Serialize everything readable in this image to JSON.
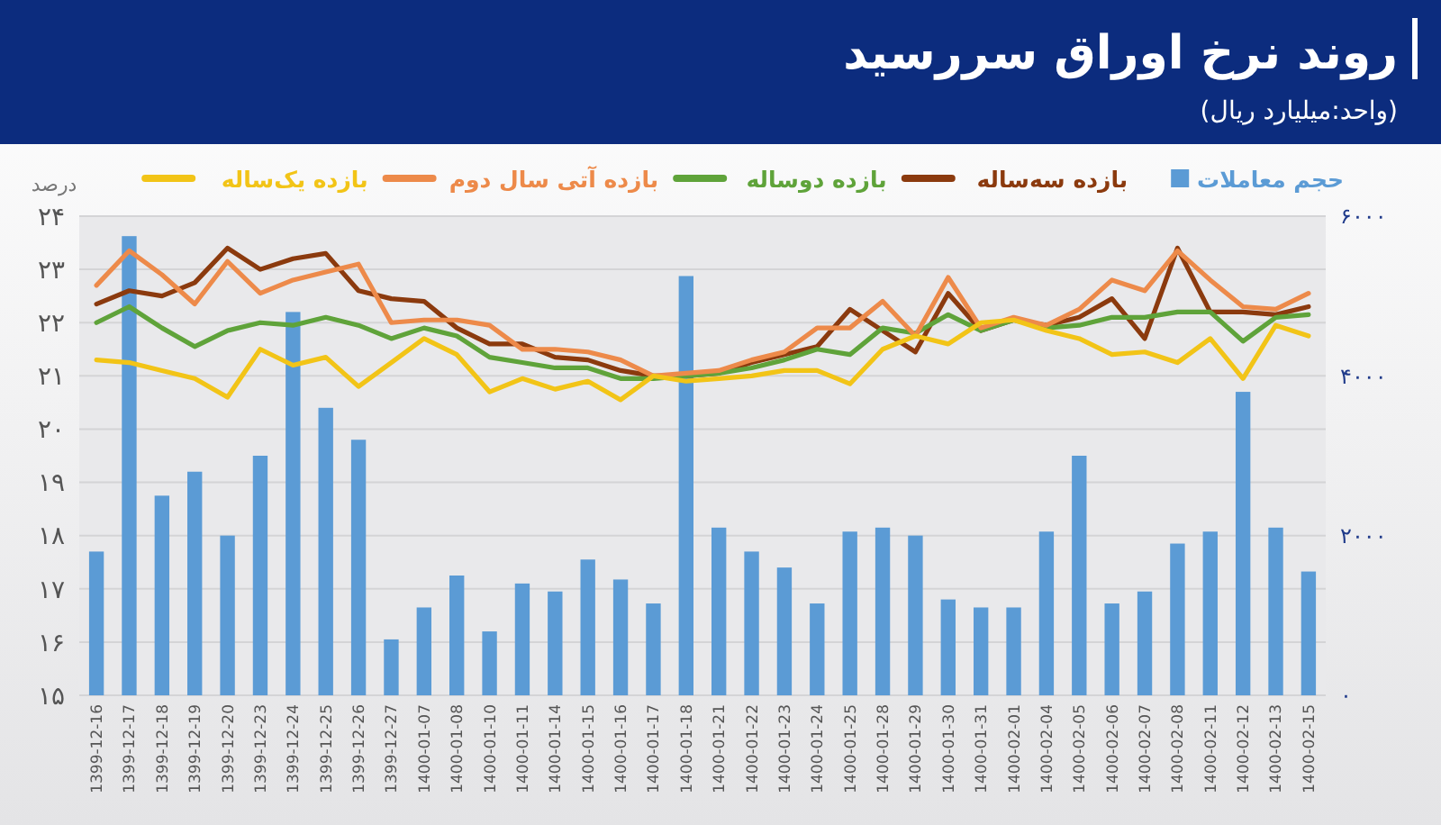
{
  "chart_data": {
    "type": "line",
    "title": "روند نرخ اوراق سررسید",
    "subtitle": "(واحد:میلیارد ریال)",
    "ylabel": "درصد",
    "categories": [
      "1399-12-16",
      "1399-12-17",
      "1399-12-18",
      "1399-12-19",
      "1399-12-20",
      "1399-12-23",
      "1399-12-24",
      "1399-12-25",
      "1399-12-26",
      "1399-12-27",
      "1400-01-07",
      "1400-01-08",
      "1400-01-10",
      "1400-01-11",
      "1400-01-14",
      "1400-01-15",
      "1400-01-16",
      "1400-01-17",
      "1400-01-18",
      "1400-01-21",
      "1400-01-22",
      "1400-01-23",
      "1400-01-24",
      "1400-01-25",
      "1400-01-28",
      "1400-01-29",
      "1400-01-30",
      "1400-01-31",
      "1400-02-01",
      "1400-02-04",
      "1400-02-05",
      "1400-02-06",
      "1400-02-07",
      "1400-02-08",
      "1400-02-11",
      "1400-02-12",
      "1400-02-13",
      "1400-02-15"
    ],
    "series": [
      {
        "name": "حجم معاملات",
        "type": "bar",
        "axis": "y2",
        "color": "#5b9bd5",
        "values": [
          1800,
          5750,
          2500,
          2800,
          2000,
          3000,
          4800,
          3600,
          3200,
          700,
          1100,
          1500,
          800,
          1400,
          1300,
          1700,
          1450,
          1150,
          5250,
          2100,
          1800,
          1600,
          1150,
          2050,
          2100,
          2000,
          1200,
          1100,
          1100,
          2050,
          3000,
          1150,
          1300,
          1900,
          2050,
          3800,
          2100,
          1550
        ]
      },
      {
        "name": "بازده سه‌ساله",
        "color": "#8b3a0e",
        "values": [
          22.35,
          22.6,
          22.5,
          22.75,
          23.4,
          23.0,
          23.2,
          23.3,
          22.6,
          22.45,
          22.4,
          21.9,
          21.6,
          21.6,
          21.35,
          21.3,
          21.1,
          21.0,
          21.0,
          21.05,
          21.25,
          21.4,
          21.55,
          22.25,
          21.85,
          21.45,
          22.55,
          21.85,
          22.05,
          21.95,
          22.1,
          22.45,
          21.7,
          23.4,
          22.2,
          22.2,
          22.15,
          22.3
        ]
      },
      {
        "name": "بازده دوساله",
        "color": "#5fa33a",
        "values": [
          22.0,
          22.3,
          21.9,
          21.55,
          21.85,
          22.0,
          21.95,
          22.1,
          21.95,
          21.7,
          21.9,
          21.75,
          21.35,
          21.25,
          21.15,
          21.15,
          20.95,
          20.95,
          21.0,
          21.05,
          21.15,
          21.3,
          21.5,
          21.4,
          21.9,
          21.8,
          22.15,
          21.85,
          22.05,
          21.9,
          21.95,
          22.1,
          22.1,
          22.2,
          22.2,
          21.65,
          22.1,
          22.15
        ]
      },
      {
        "name": "بازده آتی سال دوم",
        "color": "#ed8a4a",
        "values": [
          22.7,
          23.35,
          22.9,
          22.35,
          23.15,
          22.55,
          22.8,
          22.95,
          23.1,
          22.0,
          22.05,
          22.05,
          21.95,
          21.5,
          21.5,
          21.45,
          21.3,
          21.0,
          21.05,
          21.1,
          21.3,
          21.45,
          21.9,
          21.9,
          22.4,
          21.75,
          22.85,
          21.9,
          22.1,
          21.95,
          22.25,
          22.8,
          22.6,
          23.35,
          22.8,
          22.3,
          22.25,
          22.55
        ]
      },
      {
        "name": "بازده یک‌ساله",
        "color": "#f2c417",
        "values": [
          21.3,
          21.25,
          21.1,
          20.95,
          20.6,
          21.5,
          21.2,
          21.35,
          20.8,
          21.25,
          21.7,
          21.4,
          20.7,
          20.95,
          20.75,
          20.9,
          20.55,
          21.0,
          20.9,
          20.95,
          21.0,
          21.1,
          21.1,
          20.85,
          21.5,
          21.75,
          21.6,
          22.0,
          22.05,
          21.85,
          21.7,
          21.4,
          21.45,
          21.25,
          21.7,
          20.95,
          21.95,
          21.75
        ]
      }
    ],
    "ylim": [
      15,
      24
    ],
    "yticks": [
      {
        "value": 15,
        "label": "۱۵"
      },
      {
        "value": 16,
        "label": "۱۶"
      },
      {
        "value": 17,
        "label": "۱۷"
      },
      {
        "value": 18,
        "label": "۱۸"
      },
      {
        "value": 19,
        "label": "۱۹"
      },
      {
        "value": 20,
        "label": "۲۰"
      },
      {
        "value": 21,
        "label": "۲۱"
      },
      {
        "value": 22,
        "label": "۲۲"
      },
      {
        "value": 23,
        "label": "۲۳"
      },
      {
        "value": 24,
        "label": "۲۴"
      }
    ],
    "y2lim": [
      0,
      6000
    ],
    "y2ticks": [
      {
        "value": 0,
        "label": "۰"
      },
      {
        "value": 2000,
        "label": "۲۰۰۰"
      },
      {
        "value": 4000,
        "label": "۴۰۰۰"
      },
      {
        "value": 6000,
        "label": "۶۰۰۰"
      }
    ],
    "grid": "y",
    "legend": "top"
  }
}
